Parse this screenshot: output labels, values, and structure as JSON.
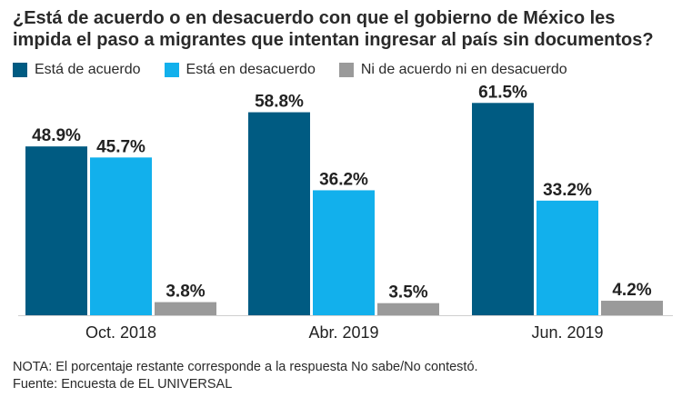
{
  "chart_data": {
    "type": "bar",
    "title": "¿Está de acuerdo o en desacuerdo con que el gobierno de México les impida el paso a migrantes que intentan ingresar al país sin documentos?",
    "categories": [
      "Oct. 2018",
      "Abr. 2019",
      "Jun. 2019"
    ],
    "series": [
      {
        "name": "Está de acuerdo",
        "color": "#005b82",
        "values": [
          48.9,
          58.8,
          61.5
        ],
        "labels": [
          "48.9%",
          "58.8%",
          "61.5%"
        ]
      },
      {
        "name": "Está en desacuerdo",
        "color": "#12b0ec",
        "values": [
          45.7,
          36.2,
          33.2
        ],
        "labels": [
          "45.7%",
          "36.2%",
          "33.2%"
        ]
      },
      {
        "name": "Ni de acuerdo ni en desacuerdo",
        "color": "#9a9a9a",
        "values": [
          3.8,
          3.5,
          4.2
        ],
        "labels": [
          "3.8%",
          "3.5%",
          "4.2%"
        ]
      }
    ],
    "ylim": [
      0,
      65
    ],
    "grid": false,
    "legend": "top-left"
  },
  "notes": {
    "nota": "NOTA: El porcentaje restante corresponde a la respuesta No sabe/No contestó.",
    "fuente": "Fuente: Encuesta de EL UNIVERSAL"
  }
}
